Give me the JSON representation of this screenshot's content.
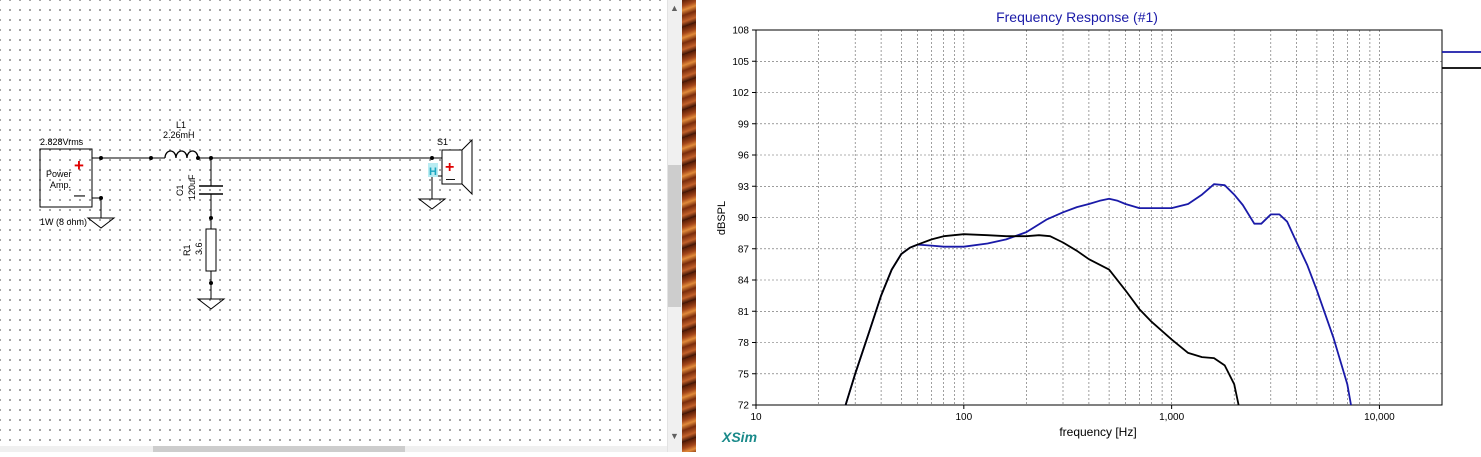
{
  "schematic": {
    "amp": {
      "voltage": "2.828Vrms",
      "label_line1": "Power",
      "label_line2": "Amp.",
      "rating": "1W (8 ohm)",
      "plus": "+",
      "minus": "—"
    },
    "inductor": {
      "ref": "L1",
      "value": "2.26mH"
    },
    "capacitor": {
      "ref": "C1",
      "value": "120uF"
    },
    "resistor": {
      "ref": "R1",
      "value": "3.6"
    },
    "speaker": {
      "ref": "S1",
      "mark": "H",
      "plus": "+",
      "minus": "—"
    }
  },
  "graph": {
    "brand": "XSim"
  },
  "chart_data": {
    "type": "line",
    "title": "Frequency Response (#1)",
    "xlabel": "frequency [Hz]",
    "ylabel": "dBSPL",
    "xscale": "log",
    "xlim": [
      10,
      20000
    ],
    "ylim": [
      72,
      108
    ],
    "yticks": [
      72,
      75,
      78,
      81,
      84,
      87,
      90,
      93,
      96,
      99,
      102,
      105,
      108
    ],
    "xticks": [
      10,
      100,
      1000,
      10000
    ],
    "xtick_labels": [
      "10",
      "100",
      "1,000",
      "10,000"
    ],
    "grid": true,
    "colors": {
      "series1": "#1a1aa8",
      "series2": "#000000",
      "title": "#1a1aa8",
      "brand": "#1a8a8a"
    },
    "series": [
      {
        "color": "#1a1aa8",
        "x": [
          27,
          30,
          35,
          40,
          45,
          50,
          55,
          60,
          70,
          80,
          100,
          130,
          160,
          200,
          250,
          300,
          350,
          400,
          450,
          500,
          550,
          600,
          700,
          800,
          1000,
          1200,
          1400,
          1600,
          1800,
          2000,
          2200,
          2500,
          2700,
          3000,
          3300,
          3600,
          4000,
          4500,
          5000,
          6000,
          7000,
          7300
        ],
        "y": [
          72,
          75,
          79,
          82.5,
          85,
          86.5,
          87.1,
          87.4,
          87.3,
          87.2,
          87.2,
          87.5,
          87.9,
          88.6,
          89.8,
          90.5,
          91.0,
          91.3,
          91.6,
          91.8,
          91.6,
          91.3,
          90.9,
          90.9,
          90.9,
          91.3,
          92.2,
          93.2,
          93.1,
          92.2,
          91.2,
          89.4,
          89.4,
          90.3,
          90.3,
          89.6,
          87.6,
          85.4,
          83.0,
          78.5,
          74.0,
          72.0
        ]
      },
      {
        "color": "#000000",
        "x": [
          27,
          30,
          35,
          40,
          45,
          50,
          55,
          60,
          70,
          80,
          100,
          130,
          160,
          200,
          230,
          260,
          300,
          350,
          400,
          500,
          600,
          700,
          800,
          1000,
          1200,
          1400,
          1600,
          1800,
          2000,
          2100
        ],
        "y": [
          72,
          75,
          79,
          82.5,
          85,
          86.5,
          87.1,
          87.4,
          87.9,
          88.2,
          88.4,
          88.3,
          88.2,
          88.2,
          88.3,
          88.2,
          87.6,
          86.8,
          86.0,
          85.0,
          83.0,
          81.2,
          80.0,
          78.3,
          77.0,
          76.6,
          76.5,
          75.8,
          74.0,
          72.0
        ]
      }
    ]
  }
}
